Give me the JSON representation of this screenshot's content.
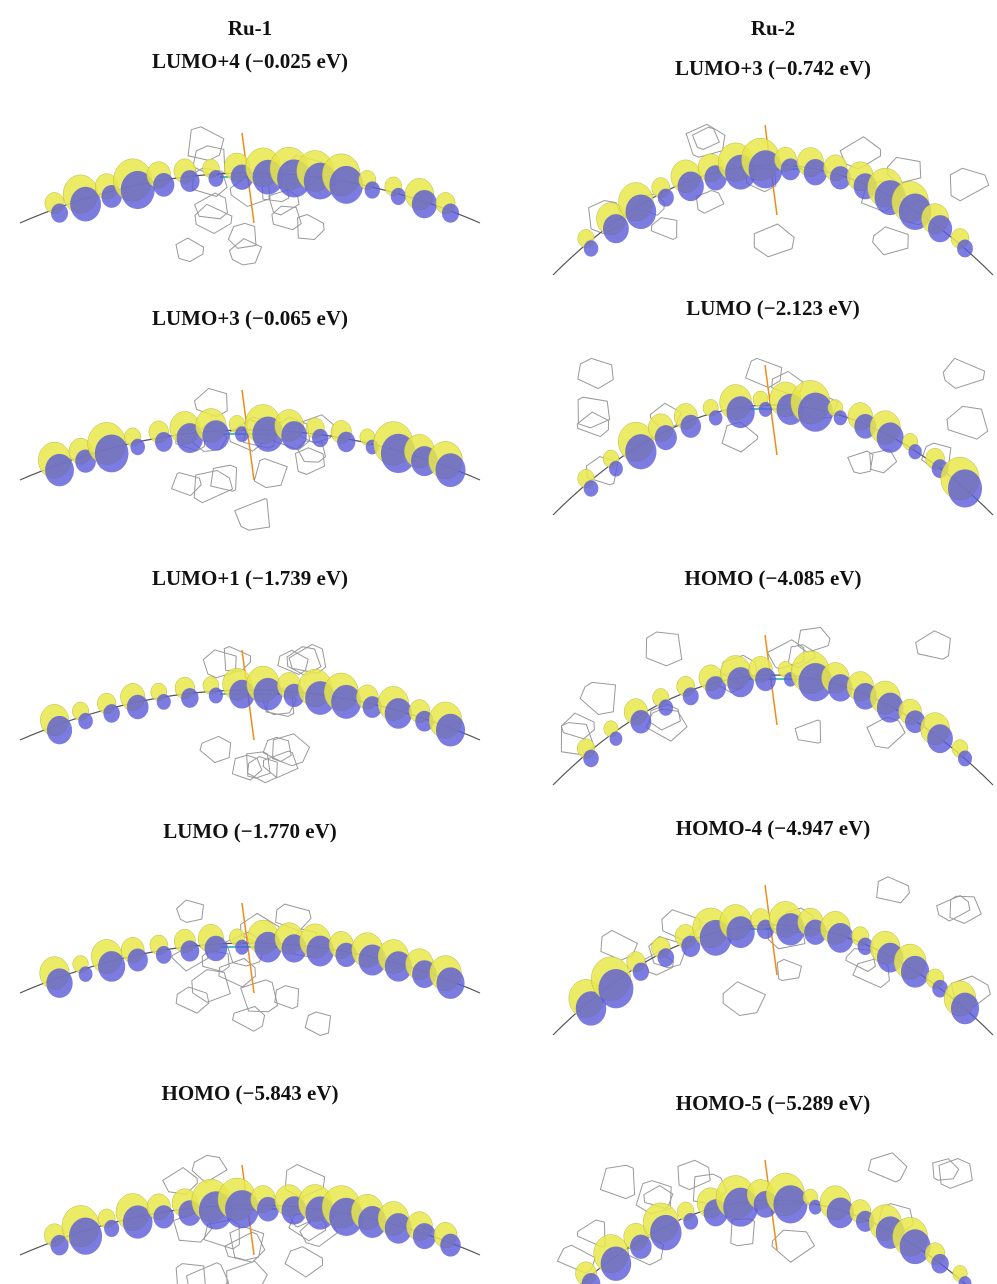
{
  "columns": [
    {
      "title": "Ru-1",
      "panels": [
        {
          "label": "LUMO+4 (−0.025 eV)"
        },
        {
          "label": "LUMO+3 (−0.065 eV)"
        },
        {
          "label": "LUMO+1 (−1.739 eV)"
        },
        {
          "label": "LUMO (−1.770 eV)"
        },
        {
          "label": "HOMO (−5.843 eV)"
        }
      ]
    },
    {
      "title": "Ru-2",
      "panels": [
        {
          "label": "LUMO+3 (−0.742 eV)"
        },
        {
          "label": "LUMO (−2.123 eV)"
        },
        {
          "label": "HOMO (−4.085 eV)"
        },
        {
          "label": "HOMO-4 (−4.947 eV)"
        },
        {
          "label": "HOMO-5 (−5.289 eV)"
        }
      ]
    }
  ]
}
